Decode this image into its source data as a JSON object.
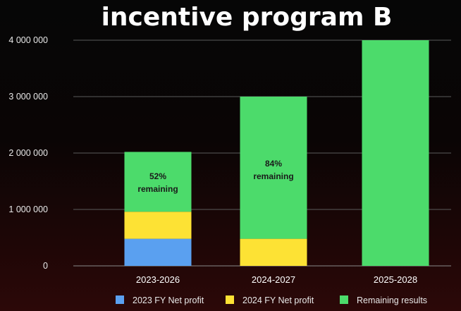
{
  "chart_data": {
    "type": "bar",
    "stacked": true,
    "title": "incentive program B",
    "categories": [
      "2023-2026",
      "2024-2027",
      "2025-2028"
    ],
    "series": [
      {
        "name": "2023 FY Net profit",
        "color": "#5aa0f0",
        "values": [
          480000,
          0,
          0
        ]
      },
      {
        "name": "2024 FY Net profit",
        "color": "#fde234",
        "values": [
          480000,
          480000,
          0
        ]
      },
      {
        "name": "Remaining results",
        "color": "#4cdb6b",
        "values": [
          1060000,
          2520000,
          4000000
        ]
      }
    ],
    "annotations": [
      {
        "category": "2023-2026",
        "lines": [
          "52%",
          "remaining"
        ]
      },
      {
        "category": "2024-2027",
        "lines": [
          "84%",
          "remaining"
        ]
      }
    ],
    "yticks": [
      0,
      1000000,
      2000000,
      3000000,
      4000000
    ],
    "ytick_labels": [
      "0",
      "1 000 000",
      "2 000 000",
      "3 000 000",
      "4 000 000"
    ],
    "ylim": [
      0,
      4000000
    ],
    "xlabel": "",
    "ylabel": "",
    "grid": true,
    "legend_position": "bottom"
  }
}
